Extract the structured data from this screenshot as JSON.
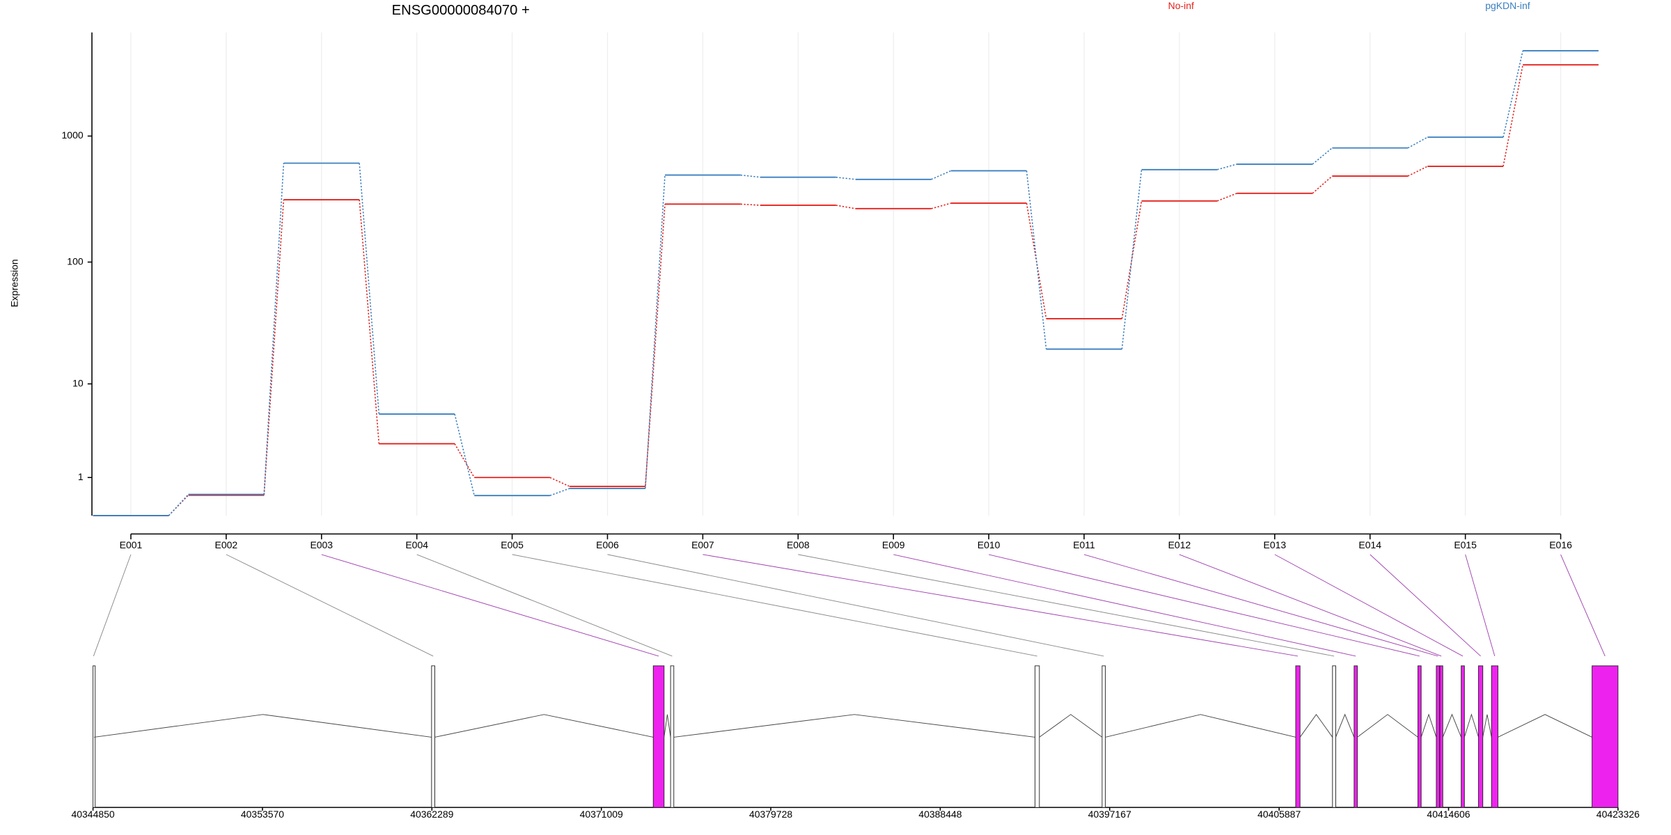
{
  "chart_data": {
    "type": "exon_usage",
    "title": "ENSG00000084070 +",
    "ylabel": "Expression",
    "yscale": "log1p",
    "ylim": [
      0,
      6600
    ],
    "yticks": [
      1,
      10,
      100,
      1000
    ],
    "legend_position": "top-right",
    "grid": true,
    "categories": [
      "E001",
      "E002",
      "E003",
      "E004",
      "E005",
      "E006",
      "E007",
      "E008",
      "E009",
      "E010",
      "E011",
      "E012",
      "E013",
      "E014",
      "E015",
      "E016"
    ],
    "series": [
      {
        "name": "No-inf",
        "color": "#e3211c",
        "values": [
          0,
          0.45,
          313,
          2.7,
          1.0,
          0.7,
          289,
          283,
          266,
          294,
          35,
          306,
          352,
          482,
          576,
          3660
        ]
      },
      {
        "name": "pgKDN-inf",
        "color": "#3a7fbf",
        "values": [
          0,
          0.47,
          610,
          5.35,
          0.44,
          0.64,
          491,
          472,
          454,
          531,
          19.7,
          542,
          599,
          805,
          979,
          4730
        ]
      }
    ],
    "significant": [
      false,
      false,
      true,
      false,
      false,
      false,
      true,
      false,
      true,
      true,
      true,
      true,
      true,
      true,
      true,
      true
    ],
    "highlight_color": "#ee22ee",
    "exon_starts": [
      40344850,
      40362271,
      40373680,
      40374571,
      40393327,
      40396778,
      40406741,
      40408633,
      40409746,
      40413030,
      40413976,
      40414160,
      40415256,
      40416147,
      40416815,
      40421991
    ],
    "exon_ends": [
      40344905,
      40362438,
      40374237,
      40374738,
      40393550,
      40396945,
      40406963,
      40408800,
      40409913,
      40413197,
      40414143,
      40414310,
      40415423,
      40416369,
      40417148,
      40423326
    ],
    "xlim": [
      40344850,
      40423326
    ],
    "xticks": [
      40344850,
      40353570,
      40362289,
      40371009,
      40379728,
      40388448,
      40397167,
      40405887,
      40414606,
      40423326
    ]
  }
}
